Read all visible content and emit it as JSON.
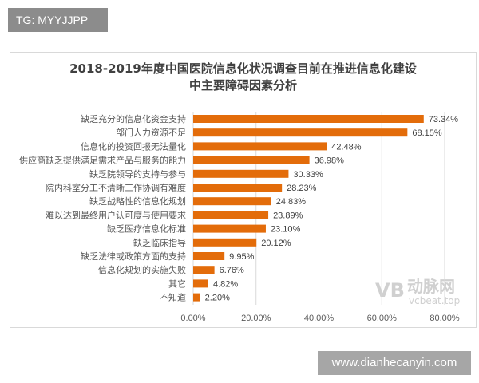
{
  "tag": "TG: MYYJJPP",
  "footer": "www.dianhecanyin.com",
  "watermark": {
    "logo": "VB",
    "name": "动脉网",
    "url": "vcbeat.top"
  },
  "chart_data": {
    "type": "bar",
    "orientation": "horizontal",
    "title_line1": "2018-2019年度中国医院信息化状况调查目前在推进信息化建设",
    "title_line2": "中主要障碍因素分析",
    "categories": [
      "缺乏充分的信息化资金支持",
      "部门人力资源不足",
      "信息化的投资回报无法量化",
      "供应商缺乏提供满足需求产品与服务的能力",
      "缺乏院领导的支持与参与",
      "院内科室分工不清晰工作协调有难度",
      "缺乏战略性的信息化规划",
      "难以达到最终用户认可度与使用要求",
      "缺乏医疗信息化标准",
      "缺乏临床指导",
      "缺乏法律或政策方面的支持",
      "信息化规划的实施失败",
      "其它",
      "不知道"
    ],
    "values": [
      73.34,
      68.15,
      42.48,
      36.98,
      30.33,
      28.23,
      24.83,
      23.89,
      23.1,
      20.12,
      9.95,
      6.76,
      4.82,
      2.2
    ],
    "data_labels": [
      "73.34%",
      "68.15%",
      "42.48%",
      "36.98%",
      "30.33%",
      "28.23%",
      "24.83%",
      "23.89%",
      "23.10%",
      "20.12%",
      "9.95%",
      "6.76%",
      "4.82%",
      "2.20%"
    ],
    "xticks": [
      "0.00%",
      "20.00%",
      "40.00%",
      "60.00%",
      "80.00%"
    ],
    "xlim": [
      0,
      80
    ],
    "grid": true,
    "bar_color": "#e36c0a"
  }
}
